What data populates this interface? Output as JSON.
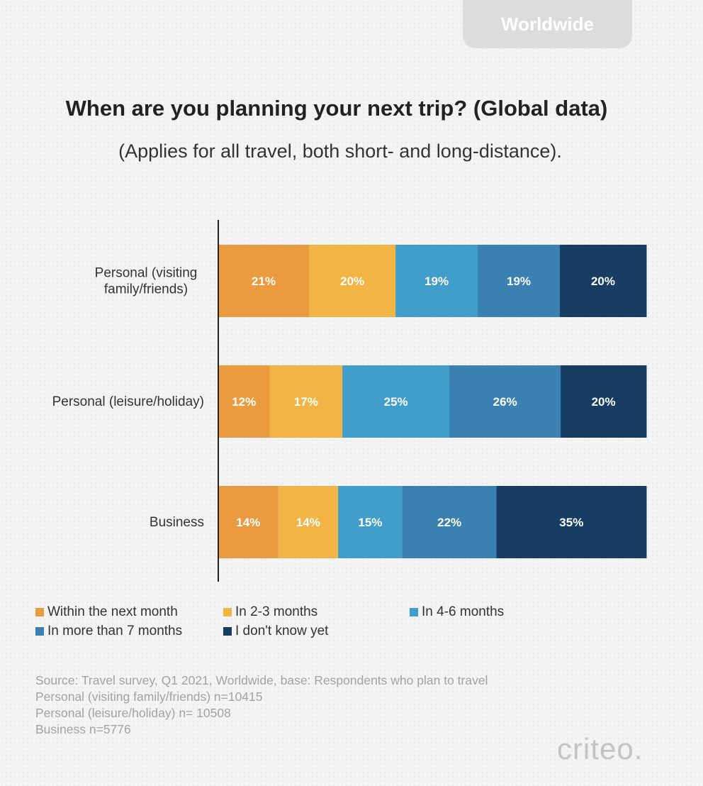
{
  "badge": "Worldwide",
  "title": "When are you planning your next trip? (Global data)",
  "subtitle": "(Applies for all travel, both short- and long-distance).",
  "chart_data": {
    "type": "bar",
    "orientation": "horizontal",
    "stacked": true,
    "categories": [
      [
        "Personal (visiting",
        "family/friends)"
      ],
      [
        "Personal (leisure/holiday)"
      ],
      [
        "Business"
      ]
    ],
    "series": [
      {
        "name": "Within the next month",
        "color": "#ea9a3f",
        "values": [
          21,
          12,
          14
        ]
      },
      {
        "name": "In 2-3 months",
        "color": "#f2b445",
        "values": [
          20,
          17,
          14
        ]
      },
      {
        "name": "In 4-6 months",
        "color": "#419dc9",
        "values": [
          19,
          25,
          15
        ]
      },
      {
        "name": "In more than 7 months",
        "color": "#3a80b0",
        "values": [
          19,
          26,
          22
        ]
      },
      {
        "name": "I don't know yet",
        "color": "#173d63",
        "values": [
          20,
          20,
          35
        ]
      }
    ],
    "value_suffix": "%",
    "legend_position": "bottom",
    "grid": false
  },
  "source": [
    "Source: Travel survey, Q1 2021, Worldwide, base: Respondents who plan to travel",
    "Personal (visiting family/friends) n=10415",
    "Personal (leisure/holiday) n= 10508",
    "Business n=5776"
  ],
  "logo": "criteo."
}
